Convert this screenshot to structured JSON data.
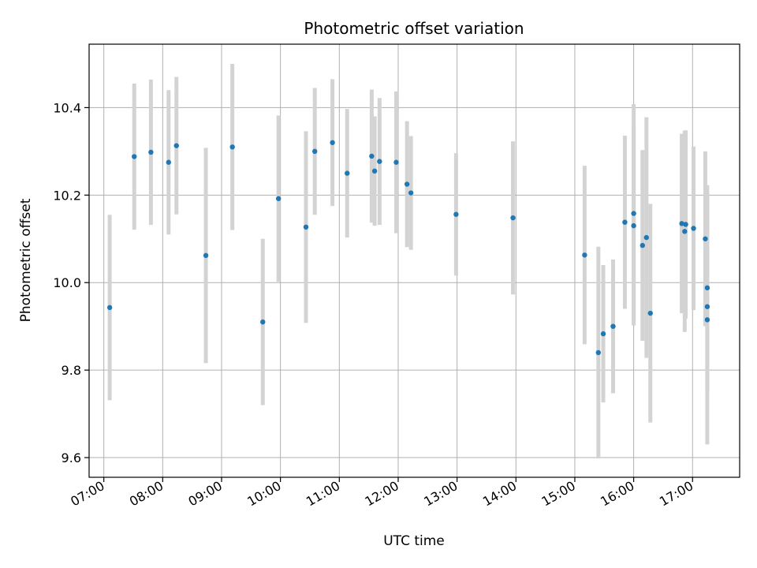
{
  "chart_data": {
    "type": "scatter",
    "title": "Photometric offset variation",
    "xlabel": "UTC time",
    "ylabel": "Photometric offset",
    "x_tick_labels": [
      "07:00",
      "08:00",
      "09:00",
      "10:00",
      "11:00",
      "12:00",
      "13:00",
      "14:00",
      "15:00",
      "16:00",
      "17:00"
    ],
    "y_tick_values": [
      9.6,
      9.8,
      10.0,
      10.2,
      10.4
    ],
    "y_tick_labels": [
      "9.6",
      "9.8",
      "10.0",
      "10.2",
      "10.4"
    ],
    "xlim": [
      "06:45",
      "17:48"
    ],
    "ylim": [
      9.555,
      10.545
    ],
    "grid": true,
    "marker_color": "#1f77b4",
    "errorbar_color": "#d3d3d3",
    "points": [
      {
        "t": "07:06",
        "y": 9.943,
        "err": 0.212
      },
      {
        "t": "07:31",
        "y": 10.288,
        "err": 0.167
      },
      {
        "t": "07:48",
        "y": 10.298,
        "err": 0.166
      },
      {
        "t": "08:06",
        "y": 10.275,
        "err": 0.165
      },
      {
        "t": "08:14",
        "y": 10.313,
        "err": 0.157
      },
      {
        "t": "08:44",
        "y": 10.062,
        "err": 0.246
      },
      {
        "t": "09:11",
        "y": 10.31,
        "err": 0.19
      },
      {
        "t": "09:42",
        "y": 9.91,
        "err": 0.19
      },
      {
        "t": "09:58",
        "y": 10.192,
        "err": 0.19
      },
      {
        "t": "10:26",
        "y": 10.127,
        "err": 0.219
      },
      {
        "t": "10:35",
        "y": 10.3,
        "err": 0.145
      },
      {
        "t": "10:53",
        "y": 10.32,
        "err": 0.145
      },
      {
        "t": "11:08",
        "y": 10.25,
        "err": 0.147
      },
      {
        "t": "11:33",
        "y": 10.289,
        "err": 0.152
      },
      {
        "t": "11:36",
        "y": 10.255,
        "err": 0.125
      },
      {
        "t": "11:41",
        "y": 10.277,
        "err": 0.145
      },
      {
        "t": "11:58",
        "y": 10.275,
        "err": 0.162
      },
      {
        "t": "12:09",
        "y": 10.225,
        "err": 0.144
      },
      {
        "t": "12:13",
        "y": 10.205,
        "err": 0.13
      },
      {
        "t": "12:59",
        "y": 10.156,
        "err": 0.14
      },
      {
        "t": "13:57",
        "y": 10.148,
        "err": 0.175
      },
      {
        "t": "15:10",
        "y": 10.063,
        "err": 0.204
      },
      {
        "t": "15:24",
        "y": 9.84,
        "err": 0.242
      },
      {
        "t": "15:29",
        "y": 9.883,
        "err": 0.157
      },
      {
        "t": "15:39",
        "y": 9.9,
        "err": 0.153
      },
      {
        "t": "15:51",
        "y": 10.138,
        "err": 0.198
      },
      {
        "t": "16:00",
        "y": 10.158,
        "err": 0.25
      },
      {
        "t": "16:00",
        "y": 10.13,
        "err": 0.228
      },
      {
        "t": "16:09",
        "y": 10.085,
        "err": 0.218
      },
      {
        "t": "16:13",
        "y": 10.103,
        "err": 0.275
      },
      {
        "t": "16:17",
        "y": 9.93,
        "err": 0.25
      },
      {
        "t": "16:49",
        "y": 10.135,
        "err": 0.205
      },
      {
        "t": "16:52",
        "y": 10.117,
        "err": 0.23
      },
      {
        "t": "16:53",
        "y": 10.133,
        "err": 0.215
      },
      {
        "t": "17:01",
        "y": 10.124,
        "err": 0.187
      },
      {
        "t": "17:13",
        "y": 10.1,
        "err": 0.2
      },
      {
        "t": "17:15",
        "y": 9.988,
        "err": 0.235
      },
      {
        "t": "17:15",
        "y": 9.945,
        "err": 0.195
      },
      {
        "t": "17:15",
        "y": 9.915,
        "err": 0.285
      }
    ]
  }
}
